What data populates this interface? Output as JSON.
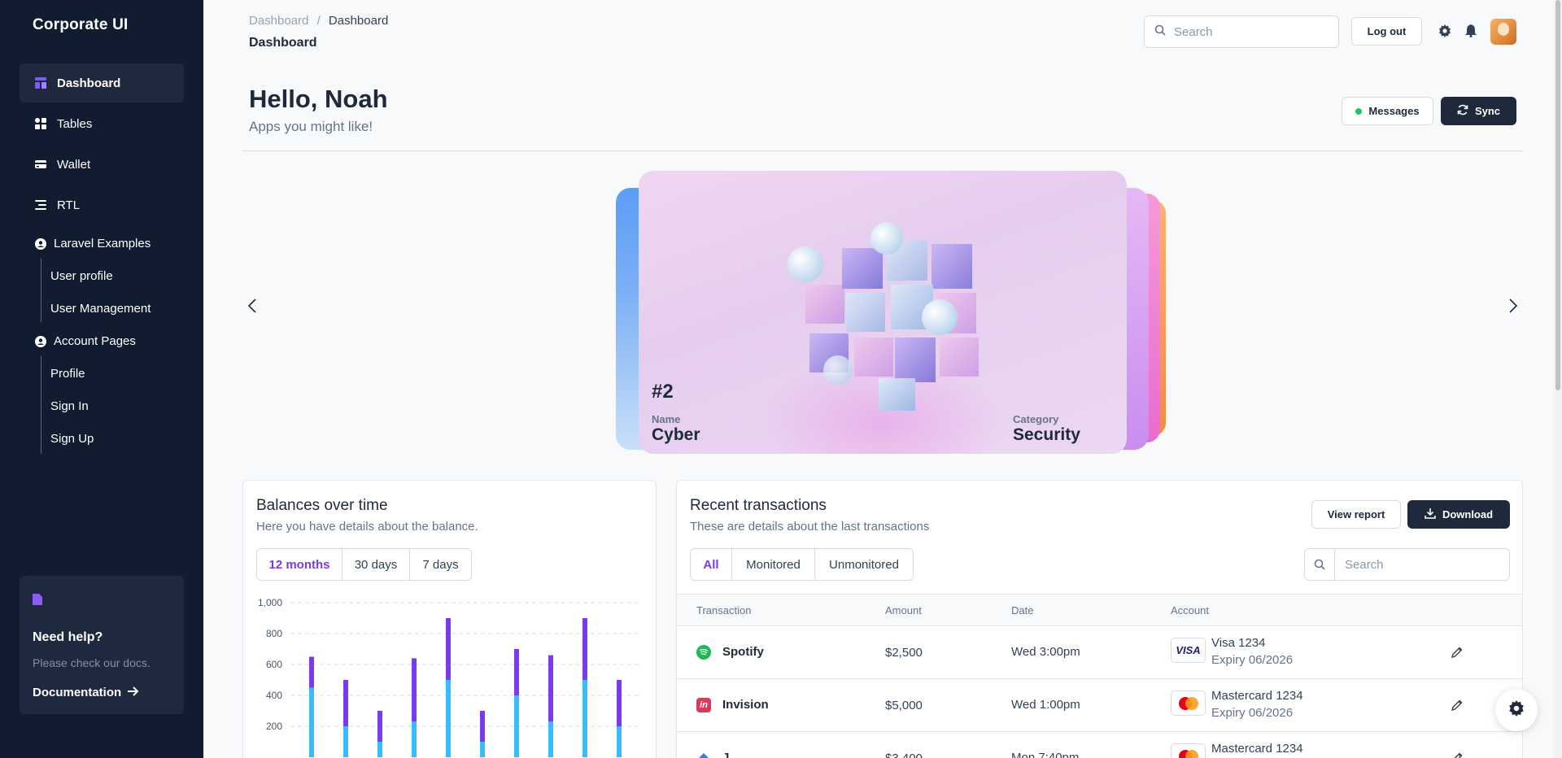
{
  "app": {
    "brand": "Corporate UI"
  },
  "sidebar": {
    "items": [
      {
        "label": "Dashboard",
        "icon": "dashboard-icon"
      },
      {
        "label": "Tables",
        "icon": "tables-icon"
      },
      {
        "label": "Wallet",
        "icon": "wallet-icon"
      },
      {
        "label": "RTL",
        "icon": "rtl-icon"
      }
    ],
    "groups": [
      {
        "label": "Laravel Examples",
        "children": [
          "User profile",
          "User Management"
        ]
      },
      {
        "label": "Account Pages",
        "children": [
          "Profile",
          "Sign In",
          "Sign Up"
        ]
      }
    ],
    "help": {
      "title": "Need help?",
      "subtitle": "Please check our docs.",
      "link": "Documentation"
    }
  },
  "header": {
    "breadcrumb": [
      "Dashboard",
      "/",
      "Dashboard"
    ],
    "title": "Dashboard",
    "search_placeholder": "Search",
    "logout": "Log out"
  },
  "hero": {
    "greeting": "Hello, Noah",
    "subtitle": "Apps you might like!",
    "messages": "Messages",
    "sync": "Sync"
  },
  "carousel": {
    "rank": "#2",
    "name_label": "Name",
    "name": "Cyber",
    "category_label": "Category",
    "category": "Security"
  },
  "balances": {
    "title": "Balances over time",
    "subtitle": "Here you have details about the balance.",
    "ranges": [
      "12 months",
      "30 days",
      "7 days"
    ],
    "active_range": "12 months"
  },
  "chart_data": {
    "type": "bar",
    "stacked": true,
    "yticks": [
      "1,000",
      "800",
      "600",
      "400",
      "200"
    ],
    "ylim": [
      0,
      1000
    ],
    "colors": [
      "#38bdf8",
      "#7c3aed"
    ],
    "series": [
      {
        "values": [
          450,
          200,
          100,
          230,
          500,
          100,
          400,
          230,
          500,
          200
        ]
      },
      {
        "values": [
          200,
          300,
          200,
          410,
          400,
          200,
          300,
          430,
          400,
          300
        ]
      }
    ]
  },
  "transactions": {
    "title": "Recent transactions",
    "subtitle": "These are details about the last transactions",
    "view_report": "View report",
    "download": "Download",
    "filters": [
      "All",
      "Monitored",
      "Unmonitored"
    ],
    "active_filter": "All",
    "search_placeholder": "Search",
    "columns": [
      "Transaction",
      "Amount",
      "Date",
      "Account"
    ],
    "rows": [
      {
        "name": "Spotify",
        "amount": "$2,500",
        "date": "Wed 3:00pm",
        "account": "Visa 1234",
        "expiry": "Expiry 06/2026",
        "brand": "visa"
      },
      {
        "name": "Invision",
        "amount": "$5,000",
        "date": "Wed 1:00pm",
        "account": "Mastercard 1234",
        "expiry": "Expiry 06/2026",
        "brand": "mastercard"
      },
      {
        "name": "J...",
        "amount": "$3,400",
        "date": "Mon 7:40pm",
        "account": "Mastercard 1234",
        "expiry": "",
        "brand": "mastercard"
      }
    ]
  }
}
